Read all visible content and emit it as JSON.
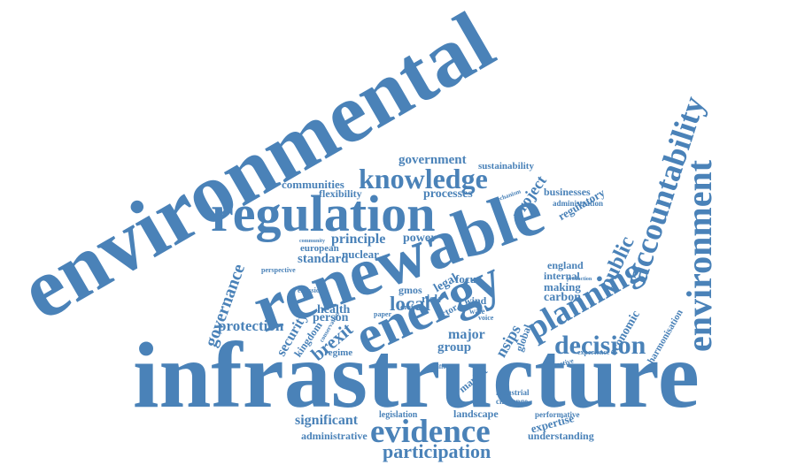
{
  "word_cloud": {
    "color": "#4a82b8",
    "words": [
      "environmental",
      "infrastructure",
      "renewable",
      "regulation",
      "energy",
      "environment",
      "accountability",
      "planning",
      "knowledge",
      "evidence",
      "decision",
      "governance",
      "brexit",
      "participation",
      "protection",
      "local",
      "project",
      "public",
      "significant",
      "principle",
      "government",
      "communities",
      "processes",
      "sustainability",
      "regulatory",
      "businesses",
      "administration",
      "standard",
      "nuclear",
      "power",
      "european",
      "flexibility",
      "community",
      "security",
      "kingdom",
      "person",
      "health",
      "risk",
      "legal",
      "focus",
      "gmos",
      "major",
      "group",
      "wind",
      "nsips",
      "global",
      "carbon",
      "making",
      "internal",
      "england",
      "economic",
      "harmonisation",
      "regime",
      "market",
      "industrial",
      "challenge",
      "landscape",
      "legislation",
      "administrative",
      "expertise",
      "understanding",
      "performative",
      "actor",
      "wale",
      "voice",
      "directive",
      "experience",
      "emission",
      "perspective",
      "draft",
      "paper",
      "conservation",
      "different",
      "mechanism",
      "production"
    ]
  }
}
